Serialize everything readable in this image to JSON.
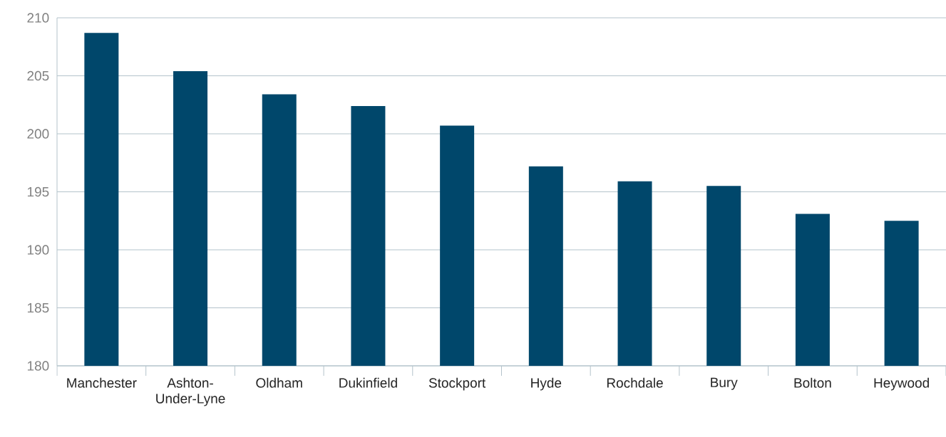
{
  "chart_data": {
    "type": "bar",
    "categories": [
      "Manchester",
      "Ashton-Under-Lyne",
      "Oldham",
      "Dukinfield",
      "Stockport",
      "Hyde",
      "Rochdale",
      "Bury",
      "Bolton",
      "Heywood"
    ],
    "values": [
      208.7,
      205.4,
      203.4,
      202.4,
      200.7,
      197.2,
      195.9,
      195.5,
      193.1,
      192.5
    ],
    "color": "#00476b",
    "ylim": [
      180,
      210
    ],
    "yticks": [
      180,
      185,
      190,
      195,
      200,
      205,
      210
    ],
    "grid": "y"
  }
}
